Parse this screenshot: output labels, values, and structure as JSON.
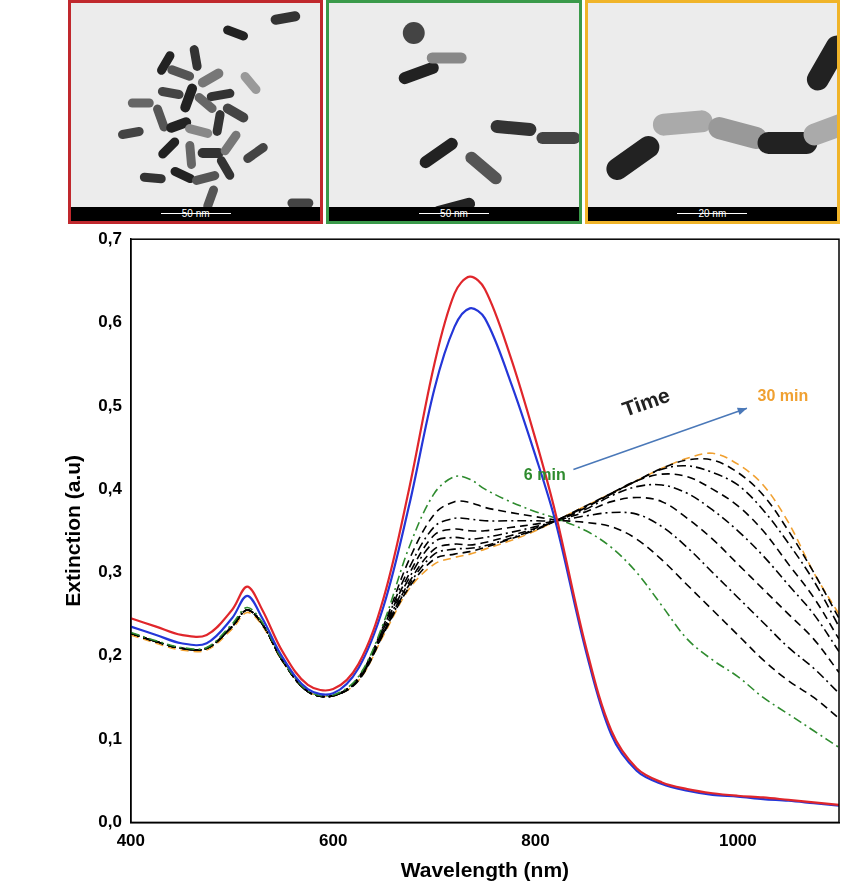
{
  "panels": [
    {
      "border_color": "#c0282d",
      "scale_bar": "50 nm"
    },
    {
      "border_color": "#3a9a4a",
      "scale_bar": "50 nm"
    },
    {
      "border_color": "#f0b429",
      "scale_bar": "20 nm"
    }
  ],
  "chart_data": {
    "type": "line",
    "x_label": "Wavelength (nm)",
    "y_label": "Extinction (a.u)",
    "annotations": [
      "Time"
    ],
    "xlim": [
      400,
      1100
    ],
    "xticks": [
      400,
      600,
      800,
      1000
    ],
    "ylim": [
      0,
      0.7
    ],
    "yticks": [
      {
        "value": 0,
        "label": "0,0"
      },
      {
        "value": 0.1,
        "label": "0,1"
      },
      {
        "value": 0.2,
        "label": "0,2"
      },
      {
        "value": 0.3,
        "label": "0,3"
      },
      {
        "value": 0.4,
        "label": "0,4"
      },
      {
        "value": 0.5,
        "label": "0,5"
      },
      {
        "value": 0.6,
        "label": "0,6"
      },
      {
        "value": 0.7,
        "label": "0,7"
      }
    ],
    "grid": false,
    "x": [
      400,
      425,
      450,
      475,
      500,
      515,
      530,
      550,
      575,
      600,
      625,
      650,
      675,
      700,
      720,
      735,
      750,
      775,
      800,
      820,
      850,
      875,
      900,
      925,
      950,
      975,
      1000,
      1025,
      1050,
      1075,
      1100
    ],
    "series": [
      {
        "color": "#e0262b",
        "line_style": "solid",
        "values": [
          0.245,
          0.235,
          0.225,
          0.225,
          0.255,
          0.283,
          0.255,
          0.205,
          0.165,
          0.16,
          0.19,
          0.27,
          0.4,
          0.55,
          0.635,
          0.655,
          0.64,
          0.56,
          0.46,
          0.37,
          0.21,
          0.11,
          0.065,
          0.048,
          0.04,
          0.035,
          0.032,
          0.03,
          0.027,
          0.024,
          0.021
        ]
      },
      {
        "color": "#2436d8",
        "line_style": "solid",
        "values": [
          0.235,
          0.225,
          0.215,
          0.215,
          0.245,
          0.272,
          0.245,
          0.198,
          0.16,
          0.155,
          0.185,
          0.26,
          0.38,
          0.52,
          0.595,
          0.617,
          0.605,
          0.53,
          0.44,
          0.36,
          0.205,
          0.105,
          0.062,
          0.046,
          0.038,
          0.033,
          0.031,
          0.028,
          0.026,
          0.023,
          0.02
        ]
      },
      {
        "name": "6 min",
        "color": "#2e8b2e",
        "line_style": "dash_dot",
        "values": [
          0.228,
          0.218,
          0.21,
          0.21,
          0.238,
          0.258,
          0.24,
          0.195,
          0.158,
          0.153,
          0.175,
          0.24,
          0.33,
          0.395,
          0.415,
          0.412,
          0.4,
          0.385,
          0.373,
          0.365,
          0.35,
          0.33,
          0.3,
          0.26,
          0.22,
          0.195,
          0.175,
          0.15,
          0.13,
          0.11,
          0.09
        ]
      },
      {
        "color": "#000000",
        "line_style": "dashed",
        "values": [
          0.227,
          0.217,
          0.209,
          0.209,
          0.235,
          0.255,
          0.238,
          0.194,
          0.157,
          0.152,
          0.174,
          0.237,
          0.315,
          0.37,
          0.385,
          0.384,
          0.378,
          0.372,
          0.367,
          0.363,
          0.36,
          0.355,
          0.34,
          0.315,
          0.285,
          0.255,
          0.225,
          0.195,
          0.17,
          0.15,
          0.125
        ]
      },
      {
        "color": "#000000",
        "line_style": "dash_dot",
        "values": [
          0.227,
          0.217,
          0.209,
          0.209,
          0.235,
          0.255,
          0.238,
          0.194,
          0.157,
          0.152,
          0.173,
          0.235,
          0.305,
          0.355,
          0.365,
          0.364,
          0.362,
          0.362,
          0.362,
          0.362,
          0.368,
          0.372,
          0.37,
          0.355,
          0.33,
          0.3,
          0.27,
          0.24,
          0.21,
          0.185,
          0.155
        ]
      },
      {
        "color": "#000000",
        "line_style": "dashed",
        "values": [
          0.227,
          0.217,
          0.209,
          0.209,
          0.235,
          0.255,
          0.238,
          0.194,
          0.157,
          0.152,
          0.172,
          0.233,
          0.298,
          0.345,
          0.352,
          0.35,
          0.35,
          0.354,
          0.358,
          0.362,
          0.373,
          0.385,
          0.39,
          0.385,
          0.365,
          0.34,
          0.31,
          0.28,
          0.25,
          0.22,
          0.18
        ]
      },
      {
        "color": "#000000",
        "line_style": "dash_dot",
        "values": [
          0.227,
          0.217,
          0.209,
          0.209,
          0.235,
          0.255,
          0.238,
          0.194,
          0.157,
          0.152,
          0.172,
          0.231,
          0.293,
          0.337,
          0.342,
          0.34,
          0.342,
          0.348,
          0.355,
          0.362,
          0.376,
          0.392,
          0.403,
          0.405,
          0.395,
          0.375,
          0.35,
          0.32,
          0.285,
          0.25,
          0.205
        ]
      },
      {
        "color": "#000000",
        "line_style": "dashed",
        "values": [
          0.227,
          0.217,
          0.209,
          0.209,
          0.235,
          0.255,
          0.238,
          0.194,
          0.157,
          0.152,
          0.171,
          0.229,
          0.288,
          0.328,
          0.334,
          0.333,
          0.336,
          0.344,
          0.353,
          0.362,
          0.378,
          0.395,
          0.41,
          0.418,
          0.415,
          0.4,
          0.38,
          0.35,
          0.31,
          0.27,
          0.22
        ]
      },
      {
        "color": "#000000",
        "line_style": "dash_dot",
        "values": [
          0.227,
          0.217,
          0.209,
          0.209,
          0.235,
          0.255,
          0.238,
          0.194,
          0.157,
          0.152,
          0.171,
          0.228,
          0.285,
          0.322,
          0.328,
          0.329,
          0.332,
          0.341,
          0.352,
          0.362,
          0.379,
          0.394,
          0.41,
          0.424,
          0.428,
          0.42,
          0.405,
          0.375,
          0.335,
          0.29,
          0.235
        ]
      },
      {
        "color": "#000000",
        "line_style": "dashed",
        "values": [
          0.227,
          0.217,
          0.209,
          0.209,
          0.235,
          0.255,
          0.238,
          0.194,
          0.157,
          0.152,
          0.17,
          0.227,
          0.282,
          0.316,
          0.322,
          0.325,
          0.33,
          0.34,
          0.351,
          0.362,
          0.38,
          0.395,
          0.41,
          0.425,
          0.435,
          0.435,
          0.42,
          0.393,
          0.35,
          0.3,
          0.245
        ]
      },
      {
        "name": "30 min",
        "color": "#f0a030",
        "line_style": "dashed",
        "values": [
          0.225,
          0.215,
          0.207,
          0.207,
          0.232,
          0.252,
          0.236,
          0.193,
          0.157,
          0.152,
          0.17,
          0.225,
          0.28,
          0.31,
          0.318,
          0.322,
          0.328,
          0.338,
          0.35,
          0.362,
          0.38,
          0.395,
          0.41,
          0.425,
          0.437,
          0.443,
          0.43,
          0.405,
          0.36,
          0.3,
          0.25
        ]
      }
    ]
  }
}
